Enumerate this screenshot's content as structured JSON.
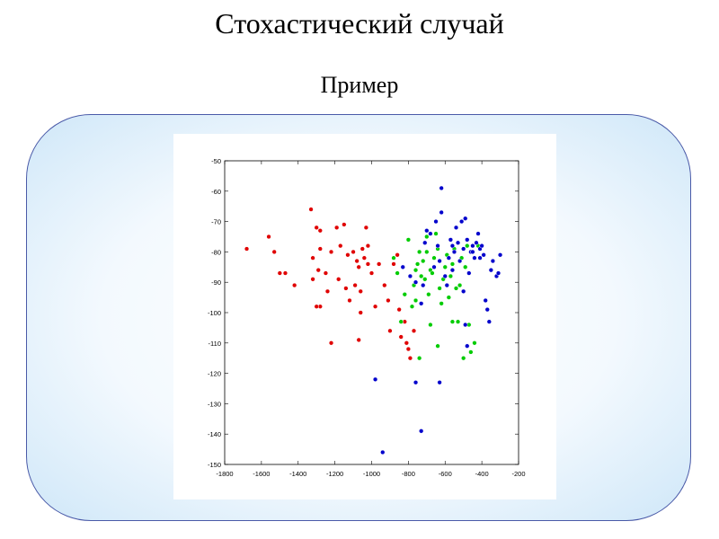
{
  "slide": {
    "title": "Стохастический случай",
    "subtitle": "Пример"
  },
  "chart_data": {
    "type": "scatter",
    "xlim": [
      -1800,
      -200
    ],
    "ylim": [
      -150,
      -50
    ],
    "xticks": [
      -1800,
      -1600,
      -1400,
      -1200,
      -1000,
      -800,
      -600,
      -400,
      -200
    ],
    "yticks": [
      -50,
      -60,
      -70,
      -80,
      -90,
      -100,
      -110,
      -120,
      -130,
      -140,
      -150
    ],
    "xtick_labels": [
      "-1800",
      "-1600",
      "-1400",
      "-1200",
      "-1000",
      "-800",
      "-600",
      "-400",
      "-200"
    ],
    "ytick_labels": [
      "-50",
      "-60",
      "-70",
      "-80",
      "-90",
      "-100",
      "-110",
      "-120",
      "-130",
      "-140",
      "-150"
    ],
    "grid": false,
    "series": [
      {
        "color": "#e00000",
        "points": [
          [
            -1680,
            -79
          ],
          [
            -1560,
            -75
          ],
          [
            -1530,
            -80
          ],
          [
            -1500,
            -87
          ],
          [
            -1470,
            -87
          ],
          [
            -1420,
            -91
          ],
          [
            -1330,
            -66
          ],
          [
            -1320,
            -89
          ],
          [
            -1300,
            -72
          ],
          [
            -1290,
            -86
          ],
          [
            -1280,
            -73
          ],
          [
            -1280,
            -79
          ],
          [
            -1250,
            -87
          ],
          [
            -1240,
            -93
          ],
          [
            -1220,
            -110
          ],
          [
            -1280,
            -98
          ],
          [
            -1300,
            -98
          ],
          [
            -1190,
            -72
          ],
          [
            -1180,
            -89
          ],
          [
            -1170,
            -78
          ],
          [
            -1150,
            -71
          ],
          [
            -1140,
            -92
          ],
          [
            -1120,
            -96
          ],
          [
            -1100,
            -80
          ],
          [
            -1090,
            -91
          ],
          [
            -1080,
            -83
          ],
          [
            -1070,
            -85
          ],
          [
            -1060,
            -100
          ],
          [
            -1050,
            -79
          ],
          [
            -1040,
            -82
          ],
          [
            -1030,
            -72
          ],
          [
            -1020,
            -84
          ],
          [
            -1020,
            -78
          ],
          [
            -1070,
            -109
          ],
          [
            -1000,
            -87
          ],
          [
            -980,
            -98
          ],
          [
            -960,
            -84
          ],
          [
            -930,
            -91
          ],
          [
            -910,
            -96
          ],
          [
            -900,
            -106
          ],
          [
            -880,
            -84
          ],
          [
            -860,
            -81
          ],
          [
            -850,
            -99
          ],
          [
            -840,
            -108
          ],
          [
            -820,
            -103
          ],
          [
            -810,
            -110
          ],
          [
            -800,
            -112
          ],
          [
            -790,
            -115
          ],
          [
            -770,
            -106
          ],
          [
            -1060,
            -93
          ],
          [
            -1220,
            -80
          ],
          [
            -1130,
            -81
          ],
          [
            -1320,
            -82
          ]
        ]
      },
      {
        "color": "#00cc00",
        "points": [
          [
            -880,
            -82
          ],
          [
            -860,
            -87
          ],
          [
            -840,
            -103
          ],
          [
            -820,
            -94
          ],
          [
            -800,
            -76
          ],
          [
            -780,
            -98
          ],
          [
            -770,
            -91
          ],
          [
            -760,
            -86
          ],
          [
            -750,
            -84
          ],
          [
            -740,
            -80
          ],
          [
            -730,
            -88
          ],
          [
            -720,
            -83
          ],
          [
            -710,
            -89
          ],
          [
            -700,
            -75
          ],
          [
            -690,
            -94
          ],
          [
            -680,
            -86
          ],
          [
            -670,
            -87
          ],
          [
            -660,
            -82
          ],
          [
            -650,
            -74
          ],
          [
            -640,
            -79
          ],
          [
            -630,
            -92
          ],
          [
            -620,
            -97
          ],
          [
            -610,
            -89
          ],
          [
            -600,
            -85
          ],
          [
            -590,
            -81
          ],
          [
            -580,
            -95
          ],
          [
            -570,
            -88
          ],
          [
            -560,
            -84
          ],
          [
            -550,
            -79
          ],
          [
            -540,
            -92
          ],
          [
            -530,
            -103
          ],
          [
            -520,
            -91
          ],
          [
            -510,
            -82
          ],
          [
            -500,
            -115
          ],
          [
            -490,
            -85
          ],
          [
            -480,
            -78
          ],
          [
            -470,
            -104
          ],
          [
            -460,
            -113
          ],
          [
            -440,
            -110
          ],
          [
            -420,
            -78
          ],
          [
            -640,
            -111
          ],
          [
            -680,
            -104
          ],
          [
            -760,
            -96
          ],
          [
            -560,
            -103
          ],
          [
            -700,
            -80
          ],
          [
            -740,
            -115
          ]
        ]
      },
      {
        "color": "#0000cc",
        "points": [
          [
            -620,
            -59
          ],
          [
            -700,
            -73
          ],
          [
            -710,
            -77
          ],
          [
            -680,
            -74
          ],
          [
            -660,
            -85
          ],
          [
            -650,
            -70
          ],
          [
            -640,
            -78
          ],
          [
            -630,
            -83
          ],
          [
            -620,
            -67
          ],
          [
            -600,
            -88
          ],
          [
            -590,
            -91
          ],
          [
            -580,
            -82
          ],
          [
            -570,
            -76
          ],
          [
            -560,
            -86
          ],
          [
            -550,
            -80
          ],
          [
            -540,
            -72
          ],
          [
            -530,
            -77
          ],
          [
            -520,
            -83
          ],
          [
            -510,
            -70
          ],
          [
            -500,
            -79
          ],
          [
            -490,
            -69
          ],
          [
            -480,
            -76
          ],
          [
            -470,
            -87
          ],
          [
            -460,
            -80
          ],
          [
            -450,
            -78
          ],
          [
            -440,
            -82
          ],
          [
            -430,
            -77
          ],
          [
            -420,
            -74
          ],
          [
            -410,
            -79
          ],
          [
            -400,
            -78
          ],
          [
            -390,
            -81
          ],
          [
            -380,
            -96
          ],
          [
            -370,
            -99
          ],
          [
            -360,
            -103
          ],
          [
            -350,
            -86
          ],
          [
            -340,
            -83
          ],
          [
            -320,
            -88
          ],
          [
            -300,
            -81
          ],
          [
            -310,
            -87
          ],
          [
            -500,
            -93
          ],
          [
            -480,
            -111
          ],
          [
            -490,
            -104
          ],
          [
            -830,
            -85
          ],
          [
            -790,
            -88
          ],
          [
            -760,
            -90
          ],
          [
            -730,
            -97
          ],
          [
            -720,
            -91
          ],
          [
            -630,
            -123
          ],
          [
            -760,
            -123
          ],
          [
            -980,
            -122
          ],
          [
            -730,
            -139
          ],
          [
            -940,
            -146
          ],
          [
            -560,
            -78
          ],
          [
            -450,
            -80
          ],
          [
            -410,
            -82
          ]
        ]
      }
    ]
  }
}
